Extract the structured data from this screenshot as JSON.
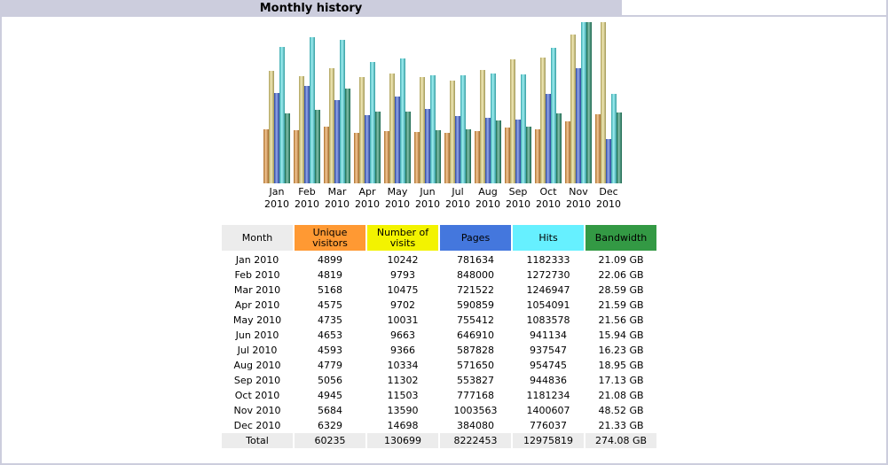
{
  "header": {
    "title": "Monthly history"
  },
  "colors": {
    "unique": "#e8963c",
    "visits": "#e6d77a",
    "pages": "#3a5fd8",
    "hits": "#4fe0e6",
    "bandwidth": "#1f8f6a",
    "header_bg": "#cccddd"
  },
  "table": {
    "headers": {
      "month": "Month",
      "unique": "Unique visitors",
      "visits": "Number of visits",
      "pages": "Pages",
      "hits": "Hits",
      "bandwidth": "Bandwidth"
    },
    "rows": [
      {
        "month": "Jan 2010",
        "unique": "4899",
        "visits": "10242",
        "pages": "781634",
        "hits": "1182333",
        "bandwidth": "21.09 GB"
      },
      {
        "month": "Feb 2010",
        "unique": "4819",
        "visits": "9793",
        "pages": "848000",
        "hits": "1272730",
        "bandwidth": "22.06 GB"
      },
      {
        "month": "Mar 2010",
        "unique": "5168",
        "visits": "10475",
        "pages": "721522",
        "hits": "1246947",
        "bandwidth": "28.59 GB"
      },
      {
        "month": "Apr 2010",
        "unique": "4575",
        "visits": "9702",
        "pages": "590859",
        "hits": "1054091",
        "bandwidth": "21.59 GB"
      },
      {
        "month": "May 2010",
        "unique": "4735",
        "visits": "10031",
        "pages": "755412",
        "hits": "1083578",
        "bandwidth": "21.56 GB"
      },
      {
        "month": "Jun 2010",
        "unique": "4653",
        "visits": "9663",
        "pages": "646910",
        "hits": "941134",
        "bandwidth": "15.94 GB"
      },
      {
        "month": "Jul 2010",
        "unique": "4593",
        "visits": "9366",
        "pages": "587828",
        "hits": "937547",
        "bandwidth": "16.23 GB"
      },
      {
        "month": "Aug 2010",
        "unique": "4779",
        "visits": "10334",
        "pages": "571650",
        "hits": "954745",
        "bandwidth": "18.95 GB"
      },
      {
        "month": "Sep 2010",
        "unique": "5056",
        "visits": "11302",
        "pages": "553827",
        "hits": "944836",
        "bandwidth": "17.13 GB"
      },
      {
        "month": "Oct 2010",
        "unique": "4945",
        "visits": "11503",
        "pages": "777168",
        "hits": "1181234",
        "bandwidth": "21.08 GB"
      },
      {
        "month": "Nov 2010",
        "unique": "5684",
        "visits": "13590",
        "pages": "1003563",
        "hits": "1400607",
        "bandwidth": "48.52 GB"
      },
      {
        "month": "Dec 2010",
        "unique": "6329",
        "visits": "14698",
        "pages": "384080",
        "hits": "776037",
        "bandwidth": "21.33 GB"
      }
    ],
    "total": {
      "month": "Total",
      "unique": "60235",
      "visits": "130699",
      "pages": "8222453",
      "hits": "12975819",
      "bandwidth": "274.08 GB"
    }
  },
  "chart_data": {
    "type": "bar",
    "title": "Monthly history",
    "categories": [
      "Jan 2010",
      "Feb 2010",
      "Mar 2010",
      "Apr 2010",
      "May 2010",
      "Jun 2010",
      "Jul 2010",
      "Aug 2010",
      "Sep 2010",
      "Oct 2010",
      "Nov 2010",
      "Dec 2010"
    ],
    "category_lines": [
      [
        "Jan",
        "2010"
      ],
      [
        "Feb",
        "2010"
      ],
      [
        "Mar",
        "2010"
      ],
      [
        "Apr",
        "2010"
      ],
      [
        "May",
        "2010"
      ],
      [
        "Jun",
        "2010"
      ],
      [
        "Jul",
        "2010"
      ],
      [
        "Aug",
        "2010"
      ],
      [
        "Sep",
        "2010"
      ],
      [
        "Oct",
        "2010"
      ],
      [
        "Nov",
        "2010"
      ],
      [
        "Dec",
        "2010"
      ]
    ],
    "scale_groups": [
      [
        "unique",
        "visits"
      ],
      [
        "pages",
        "hits"
      ],
      [
        "bandwidth"
      ]
    ],
    "series": [
      {
        "key": "unique",
        "name": "Unique visitors",
        "color": "#e8963c",
        "values": [
          4899,
          4819,
          5168,
          4575,
          4735,
          4653,
          4593,
          4779,
          5056,
          4945,
          5684,
          6329
        ]
      },
      {
        "key": "visits",
        "name": "Number of visits",
        "color": "#e6d77a",
        "values": [
          10242,
          9793,
          10475,
          9702,
          10031,
          9663,
          9366,
          10334,
          11302,
          11503,
          13590,
          14698
        ]
      },
      {
        "key": "pages",
        "name": "Pages",
        "color": "#3a5fd8",
        "values": [
          781634,
          848000,
          721522,
          590859,
          755412,
          646910,
          587828,
          571650,
          553827,
          777168,
          1003563,
          384080
        ]
      },
      {
        "key": "hits",
        "name": "Hits",
        "color": "#4fe0e6",
        "values": [
          1182333,
          1272730,
          1246947,
          1054091,
          1083578,
          941134,
          937547,
          954745,
          944836,
          1181234,
          1400607,
          776037
        ]
      },
      {
        "key": "bandwidth",
        "name": "Bandwidth",
        "color": "#1f8f6a",
        "values": [
          21.09,
          22.06,
          28.59,
          21.59,
          21.56,
          15.94,
          16.23,
          18.95,
          17.13,
          21.08,
          48.52,
          21.33
        ]
      }
    ],
    "xlabel": "",
    "ylabel": "",
    "grid": false,
    "legend": "none"
  }
}
